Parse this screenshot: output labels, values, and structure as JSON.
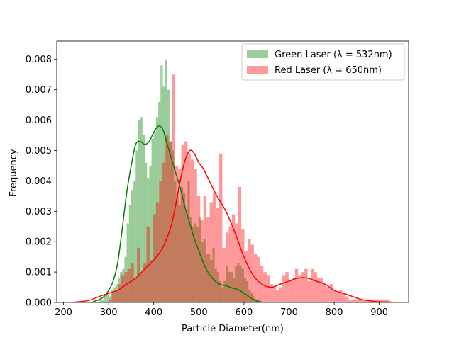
{
  "chart_data": {
    "type": "histogram",
    "title": "",
    "xlabel": "Particle Diameter(nm)",
    "ylabel": "Frequency",
    "xlim": [
      185,
      965
    ],
    "ylim": [
      0,
      0.0086
    ],
    "xticks": [
      200,
      300,
      400,
      500,
      600,
      700,
      800,
      900
    ],
    "yticks": [
      0.0,
      0.001,
      0.002,
      0.003,
      0.004,
      0.005,
      0.006,
      0.007,
      0.008
    ],
    "ytick_labels": [
      "0.000",
      "0.001",
      "0.002",
      "0.003",
      "0.004",
      "0.005",
      "0.006",
      "0.007",
      "0.008"
    ],
    "grid": false,
    "legend": "top-right",
    "series": [
      {
        "name": "Green Laser (λ = 532nm)",
        "color": "#008000",
        "bar_alpha": 0.4,
        "bin_start": 280,
        "bin_width": 5,
        "hist_values": [
          0.0001,
          0.0001,
          0.0002,
          0.0003,
          0.0002,
          0.0004,
          0.0005,
          0.0006,
          0.0008,
          0.001,
          0.0011,
          0.0015,
          0.0026,
          0.0032,
          0.0037,
          0.004,
          0.005,
          0.006,
          0.0061,
          0.0055,
          0.0046,
          0.0041,
          0.0045,
          0.0054,
          0.0056,
          0.0061,
          0.0066,
          0.0078,
          0.0071,
          0.008,
          0.007,
          0.0053,
          0.005,
          0.004,
          0.0035,
          0.0032,
          0.0038,
          0.0036,
          0.003,
          0.004,
          0.0028,
          0.0025,
          0.0026,
          0.0025,
          0.0028,
          0.002,
          0.0021,
          0.0016,
          0.0016,
          0.0014,
          0.0018,
          0.0011,
          0.001,
          0.0007,
          0.0005,
          0.0007,
          0.0012,
          0.001,
          0.001,
          0.0008,
          0.0012,
          0.0013,
          0.0012,
          0.0011,
          0.0008,
          0.0007,
          0.0004,
          0.0003,
          0.0002,
          0.0001,
          0.0001
        ],
        "kde_x": [
          265,
          280,
          290,
          300,
          310,
          320,
          330,
          340,
          350,
          360,
          370,
          380,
          390,
          400,
          410,
          420,
          430,
          440,
          450,
          460,
          470,
          480,
          490,
          500,
          510,
          520,
          530,
          540,
          550,
          560,
          570,
          580,
          590,
          600,
          610,
          620,
          630,
          640
        ],
        "kde_y": [
          2e-05,
          0.0001,
          0.0002,
          0.0004,
          0.0007,
          0.0013,
          0.0024,
          0.0036,
          0.0045,
          0.0052,
          0.0053,
          0.0052,
          0.0053,
          0.0056,
          0.0058,
          0.0057,
          0.0052,
          0.0047,
          0.0042,
          0.0037,
          0.0031,
          0.0026,
          0.0021,
          0.0017,
          0.0013,
          0.001,
          0.0008,
          0.00065,
          0.00058,
          0.00055,
          0.0005,
          0.00045,
          0.0004,
          0.0003,
          0.0002,
          0.0001,
          4e-05,
          1e-05
        ]
      },
      {
        "name": "Red Laser (λ = 650nm)",
        "color": "#ff0000",
        "bar_alpha": 0.4,
        "bin_start": 300,
        "bin_width": 7,
        "hist_values": [
          0.0001,
          0.0003,
          0.0004,
          0.0006,
          0.0009,
          0.001,
          0.0011,
          0.0013,
          0.0008,
          0.0018,
          0.001,
          0.0013,
          0.0025,
          0.0014,
          0.0029,
          0.0033,
          0.004,
          0.0046,
          0.0055,
          0.0053,
          0.0075,
          0.0045,
          0.0044,
          0.0052,
          0.0053,
          0.0049,
          0.0047,
          0.0044,
          0.0035,
          0.0027,
          0.0035,
          0.0028,
          0.0033,
          0.0036,
          0.0031,
          0.0049,
          0.0018,
          0.0023,
          0.0025,
          0.0029,
          0.0026,
          0.0038,
          0.0024,
          0.0017,
          0.0021,
          0.0019,
          0.0016,
          0.0015,
          0.0012,
          0.001,
          0.0009,
          0.0006,
          0.0005,
          0.0004,
          0.0005,
          0.0009,
          0.001,
          0.0007,
          0.0008,
          0.0011,
          0.0009,
          0.001,
          0.0011,
          0.0007,
          0.0011,
          0.001,
          0.0008,
          0.0008,
          0.0006,
          0.0005,
          0.0006,
          0.0004,
          0.0003,
          0.0004,
          0.0003,
          0.0002,
          0.0001,
          0.0001,
          0.0001,
          0.0001,
          0.0001,
          0.0001,
          0.0001,
          0.0001,
          0.0001,
          0.0001,
          0.0001,
          0.0001,
          0.0001
        ],
        "kde_x": [
          222,
          240,
          260,
          280,
          300,
          320,
          340,
          360,
          380,
          400,
          420,
          440,
          460,
          470,
          480,
          490,
          500,
          510,
          520,
          540,
          560,
          580,
          600,
          620,
          640,
          660,
          680,
          700,
          720,
          740,
          760,
          780,
          800,
          820,
          840,
          860,
          880,
          900,
          930
        ],
        "kde_y": [
          1e-05,
          3e-05,
          8e-05,
          0.0002,
          0.0003,
          0.0004,
          0.0006,
          0.0008,
          0.0011,
          0.0014,
          0.0018,
          0.0026,
          0.0041,
          0.0047,
          0.005,
          0.0049,
          0.0046,
          0.0044,
          0.0041,
          0.0035,
          0.003,
          0.0023,
          0.0015,
          0.0009,
          0.0006,
          0.0005,
          0.0006,
          0.0007,
          0.0008,
          0.0008,
          0.0007,
          0.0006,
          0.0004,
          0.0003,
          0.0002,
          0.0001,
          5e-05,
          2e-05,
          1e-05
        ]
      }
    ]
  }
}
